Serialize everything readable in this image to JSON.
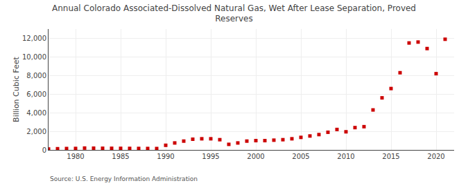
{
  "chart_data": {
    "type": "scatter",
    "title": "Annual Colorado Associated-Dissolved Natural Gas, Wet After Lease Separation, Proved\nReserves",
    "ylabel": "Billion Cubic Feet",
    "source": "Source: U.S. Energy Information Administration",
    "x": [
      1977,
      1978,
      1979,
      1980,
      1981,
      1982,
      1983,
      1984,
      1985,
      1986,
      1987,
      1988,
      1989,
      1990,
      1991,
      1992,
      1993,
      1994,
      1995,
      1996,
      1997,
      1998,
      1999,
      2000,
      2001,
      2002,
      2003,
      2004,
      2005,
      2006,
      2007,
      2008,
      2009,
      2010,
      2011,
      2012,
      2013,
      2014,
      2015,
      2016,
      2017,
      2018,
      2019,
      2020,
      2021
    ],
    "values": [
      100,
      130,
      150,
      160,
      200,
      190,
      180,
      175,
      170,
      165,
      160,
      155,
      150,
      500,
      750,
      950,
      1150,
      1200,
      1200,
      1100,
      600,
      750,
      950,
      1000,
      1000,
      1050,
      1100,
      1200,
      1350,
      1500,
      1650,
      1900,
      2200,
      1950,
      2400,
      2500,
      4300,
      5600,
      6600,
      8300,
      11500,
      11600,
      10900,
      8200,
      11900
    ],
    "color": "#cc0000",
    "marker": "square",
    "xlim": [
      1977,
      2022
    ],
    "xticks": [
      1980,
      1985,
      1990,
      1995,
      2000,
      2005,
      2010,
      2015,
      2020
    ],
    "ylim": [
      0,
      13000
    ],
    "yticks": [
      0,
      {
        "value": 2000,
        "label": "2,000"
      },
      {
        "value": 4000,
        "label": "4,000"
      },
      {
        "value": 6000,
        "label": "6,000"
      },
      {
        "value": 8000,
        "label": "8,000"
      },
      {
        "value": 10000,
        "label": "10,000"
      },
      {
        "value": 12000,
        "label": "12,000"
      }
    ],
    "grid": true
  }
}
